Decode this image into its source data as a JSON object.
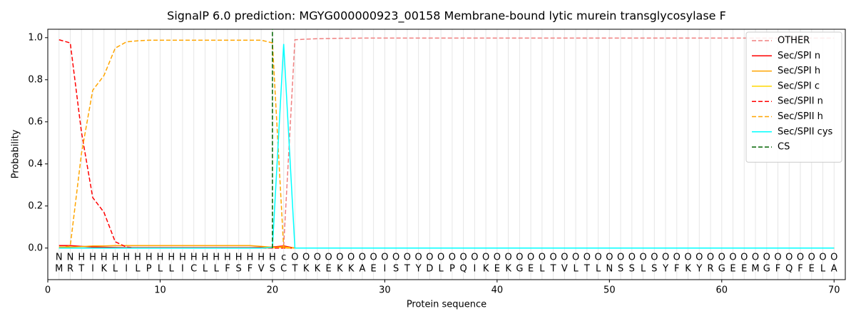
{
  "chart_data": {
    "type": "line",
    "title": "SignalP 6.0 prediction: MGYG000000923_00158 Membrane-bound lytic murein transglycosylase F",
    "xlabel": "Protein sequence",
    "ylabel": "Probability",
    "x": [
      1,
      2,
      3,
      4,
      5,
      6,
      7,
      8,
      9,
      10,
      11,
      12,
      13,
      14,
      15,
      16,
      17,
      18,
      19,
      20,
      21,
      22,
      23,
      24,
      25,
      26,
      27,
      28,
      29,
      30,
      31,
      32,
      33,
      34,
      35,
      36,
      37,
      38,
      39,
      40,
      41,
      42,
      43,
      44,
      45,
      46,
      47,
      48,
      49,
      50,
      51,
      52,
      53,
      54,
      55,
      56,
      57,
      58,
      59,
      60,
      61,
      62,
      63,
      64,
      65,
      66,
      67,
      68,
      69,
      70
    ],
    "sequence": [
      "M",
      "R",
      "T",
      "I",
      "K",
      "L",
      "I",
      "L",
      "P",
      "L",
      "L",
      "I",
      "C",
      "L",
      "L",
      "F",
      "S",
      "F",
      "V",
      "S",
      "C",
      "T",
      "K",
      "K",
      "E",
      "K",
      "K",
      "A",
      "E",
      "I",
      "S",
      "T",
      "Y",
      "D",
      "L",
      "P",
      "Q",
      "I",
      "K",
      "E",
      "K",
      "G",
      "E",
      "L",
      "T",
      "V",
      "L",
      "T",
      "L",
      "N",
      "S",
      "S",
      "L",
      "S",
      "Y",
      "F",
      "K",
      "Y",
      "R",
      "G",
      "E",
      "E",
      "M",
      "G",
      "F",
      "Q",
      "F",
      "E",
      "L",
      "A"
    ],
    "labels": [
      "N",
      "N",
      "H",
      "H",
      "H",
      "H",
      "H",
      "H",
      "H",
      "H",
      "H",
      "H",
      "H",
      "H",
      "H",
      "H",
      "H",
      "H",
      "H",
      "H",
      "c",
      "O",
      "O",
      "O",
      "O",
      "O",
      "O",
      "O",
      "O",
      "O",
      "O",
      "O",
      "O",
      "O",
      "O",
      "O",
      "O",
      "O",
      "O",
      "O",
      "O",
      "O",
      "O",
      "O",
      "O",
      "O",
      "O",
      "O",
      "O",
      "O",
      "O",
      "O",
      "O",
      "O",
      "O",
      "O",
      "O",
      "O",
      "O",
      "O",
      "O",
      "O",
      "O",
      "O",
      "O",
      "O",
      "O",
      "O",
      "O",
      "O"
    ],
    "label_colors": {
      "N": "#ff0000",
      "H": "#ffa500",
      "c": "#00e5e5",
      "O": "#808080"
    },
    "series": [
      {
        "name": "OTHER",
        "color": "#f08080",
        "dashed": true,
        "values": [
          0,
          0,
          0,
          0,
          0,
          0,
          0,
          0,
          0,
          0,
          0,
          0,
          0,
          0,
          0,
          0,
          0,
          0,
          0,
          0,
          0.01,
          0.99,
          0.993,
          0.995,
          0.996,
          0.997,
          0.997,
          0.998,
          0.998,
          0.998,
          0.998,
          0.998,
          0.998,
          0.998,
          0.998,
          0.998,
          0.998,
          0.998,
          0.998,
          0.998,
          0.998,
          0.998,
          0.998,
          0.998,
          0.998,
          0.998,
          0.998,
          0.998,
          0.998,
          0.998,
          0.998,
          0.998,
          0.998,
          0.998,
          0.998,
          0.998,
          0.998,
          0.998,
          0.998,
          0.998,
          0.998,
          0.998,
          0.998,
          0.998,
          0.998,
          0.998,
          0.998,
          0.998,
          0.998,
          0.998
        ]
      },
      {
        "name": "Sec/SPI n",
        "color": "#ff0000",
        "dashed": false,
        "values": [
          0.012,
          0.012,
          0.008,
          0.005,
          0.004,
          0.003,
          0.002,
          0.002,
          0.002,
          0.002,
          0.002,
          0.002,
          0.002,
          0.002,
          0.002,
          0.002,
          0.002,
          0.002,
          0.003,
          0.005,
          0.01,
          0,
          0,
          0,
          0,
          0,
          0,
          0,
          0,
          0,
          0,
          0,
          0,
          0,
          0,
          0,
          0,
          0,
          0,
          0,
          0,
          0,
          0,
          0,
          0,
          0,
          0,
          0,
          0,
          0,
          0,
          0,
          0,
          0,
          0,
          0,
          0,
          0,
          0,
          0,
          0,
          0,
          0,
          0,
          0,
          0,
          0,
          0,
          0,
          0
        ]
      },
      {
        "name": "Sec/SPI h",
        "color": "#ffa500",
        "dashed": false,
        "values": [
          0.005,
          0.005,
          0.007,
          0.01,
          0.01,
          0.012,
          0.012,
          0.012,
          0.012,
          0.012,
          0.012,
          0.012,
          0.012,
          0.012,
          0.012,
          0.012,
          0.012,
          0.012,
          0.008,
          0.004,
          0.002,
          0,
          0,
          0,
          0,
          0,
          0,
          0,
          0,
          0,
          0,
          0,
          0,
          0,
          0,
          0,
          0,
          0,
          0,
          0,
          0,
          0,
          0,
          0,
          0,
          0,
          0,
          0,
          0,
          0,
          0,
          0,
          0,
          0,
          0,
          0,
          0,
          0,
          0,
          0,
          0,
          0,
          0,
          0,
          0,
          0,
          0,
          0,
          0,
          0
        ]
      },
      {
        "name": "Sec/SPI c",
        "color": "#ffd700",
        "dashed": false,
        "values": [
          0,
          0,
          0,
          0,
          0,
          0,
          0,
          0,
          0,
          0,
          0,
          0,
          0,
          0,
          0,
          0,
          0,
          0,
          0,
          0.003,
          0.005,
          0,
          0,
          0,
          0,
          0,
          0,
          0,
          0,
          0,
          0,
          0,
          0,
          0,
          0,
          0,
          0,
          0,
          0,
          0,
          0,
          0,
          0,
          0,
          0,
          0,
          0,
          0,
          0,
          0,
          0,
          0,
          0,
          0,
          0,
          0,
          0,
          0,
          0,
          0,
          0,
          0,
          0,
          0,
          0,
          0,
          0,
          0,
          0,
          0
        ]
      },
      {
        "name": "Sec/SPII n",
        "color": "#ff0000",
        "dashed": true,
        "values": [
          0.99,
          0.975,
          0.55,
          0.24,
          0.17,
          0.03,
          0.005,
          0,
          0,
          0,
          0,
          0,
          0,
          0,
          0,
          0,
          0,
          0,
          0,
          0,
          0,
          0,
          0,
          0,
          0,
          0,
          0,
          0,
          0,
          0,
          0,
          0,
          0,
          0,
          0,
          0,
          0,
          0,
          0,
          0,
          0,
          0,
          0,
          0,
          0,
          0,
          0,
          0,
          0,
          0,
          0,
          0,
          0,
          0,
          0,
          0,
          0,
          0,
          0,
          0,
          0,
          0,
          0,
          0,
          0,
          0,
          0,
          0,
          0,
          0
        ]
      },
      {
        "name": "Sec/SPII h",
        "color": "#ffa500",
        "dashed": true,
        "values": [
          0,
          0.01,
          0.45,
          0.75,
          0.82,
          0.95,
          0.98,
          0.985,
          0.988,
          0.988,
          0.988,
          0.988,
          0.988,
          0.988,
          0.988,
          0.988,
          0.988,
          0.988,
          0.988,
          0.975,
          0,
          0,
          0,
          0,
          0,
          0,
          0,
          0,
          0,
          0,
          0,
          0,
          0,
          0,
          0,
          0,
          0,
          0,
          0,
          0,
          0,
          0,
          0,
          0,
          0,
          0,
          0,
          0,
          0,
          0,
          0,
          0,
          0,
          0,
          0,
          0,
          0,
          0,
          0,
          0,
          0,
          0,
          0,
          0,
          0,
          0,
          0,
          0,
          0,
          0
        ]
      },
      {
        "name": "Sec/SPII cys",
        "color": "#00ffff",
        "dashed": false,
        "values": [
          0,
          0,
          0,
          0,
          0,
          0,
          0,
          0,
          0,
          0,
          0,
          0,
          0,
          0,
          0,
          0,
          0,
          0,
          0,
          0.003,
          0.97,
          0,
          0,
          0,
          0,
          0,
          0,
          0,
          0,
          0,
          0,
          0,
          0,
          0,
          0,
          0,
          0,
          0,
          0,
          0,
          0,
          0,
          0,
          0,
          0,
          0,
          0,
          0,
          0,
          0,
          0,
          0,
          0,
          0,
          0,
          0,
          0,
          0,
          0,
          0,
          0,
          0,
          0,
          0,
          0,
          0,
          0,
          0,
          0,
          0
        ]
      },
      {
        "name": "CS",
        "color": "#006400",
        "dashed": true,
        "position": 20
      }
    ],
    "xlim": [
      0,
      71
    ],
    "ylim": [
      -0.15,
      1.04
    ],
    "xticks": [
      0,
      10,
      20,
      30,
      40,
      50,
      60,
      70
    ],
    "yticks": [
      {
        "value": 0,
        "label": "0.0"
      },
      {
        "value": 0.2,
        "label": "0.2"
      },
      {
        "value": 0.4,
        "label": "0.4"
      },
      {
        "value": 0.6,
        "label": "0.6"
      },
      {
        "value": 0.8,
        "label": "0.8"
      },
      {
        "value": 1,
        "label": "1.0"
      }
    ],
    "legend": "upper right"
  }
}
